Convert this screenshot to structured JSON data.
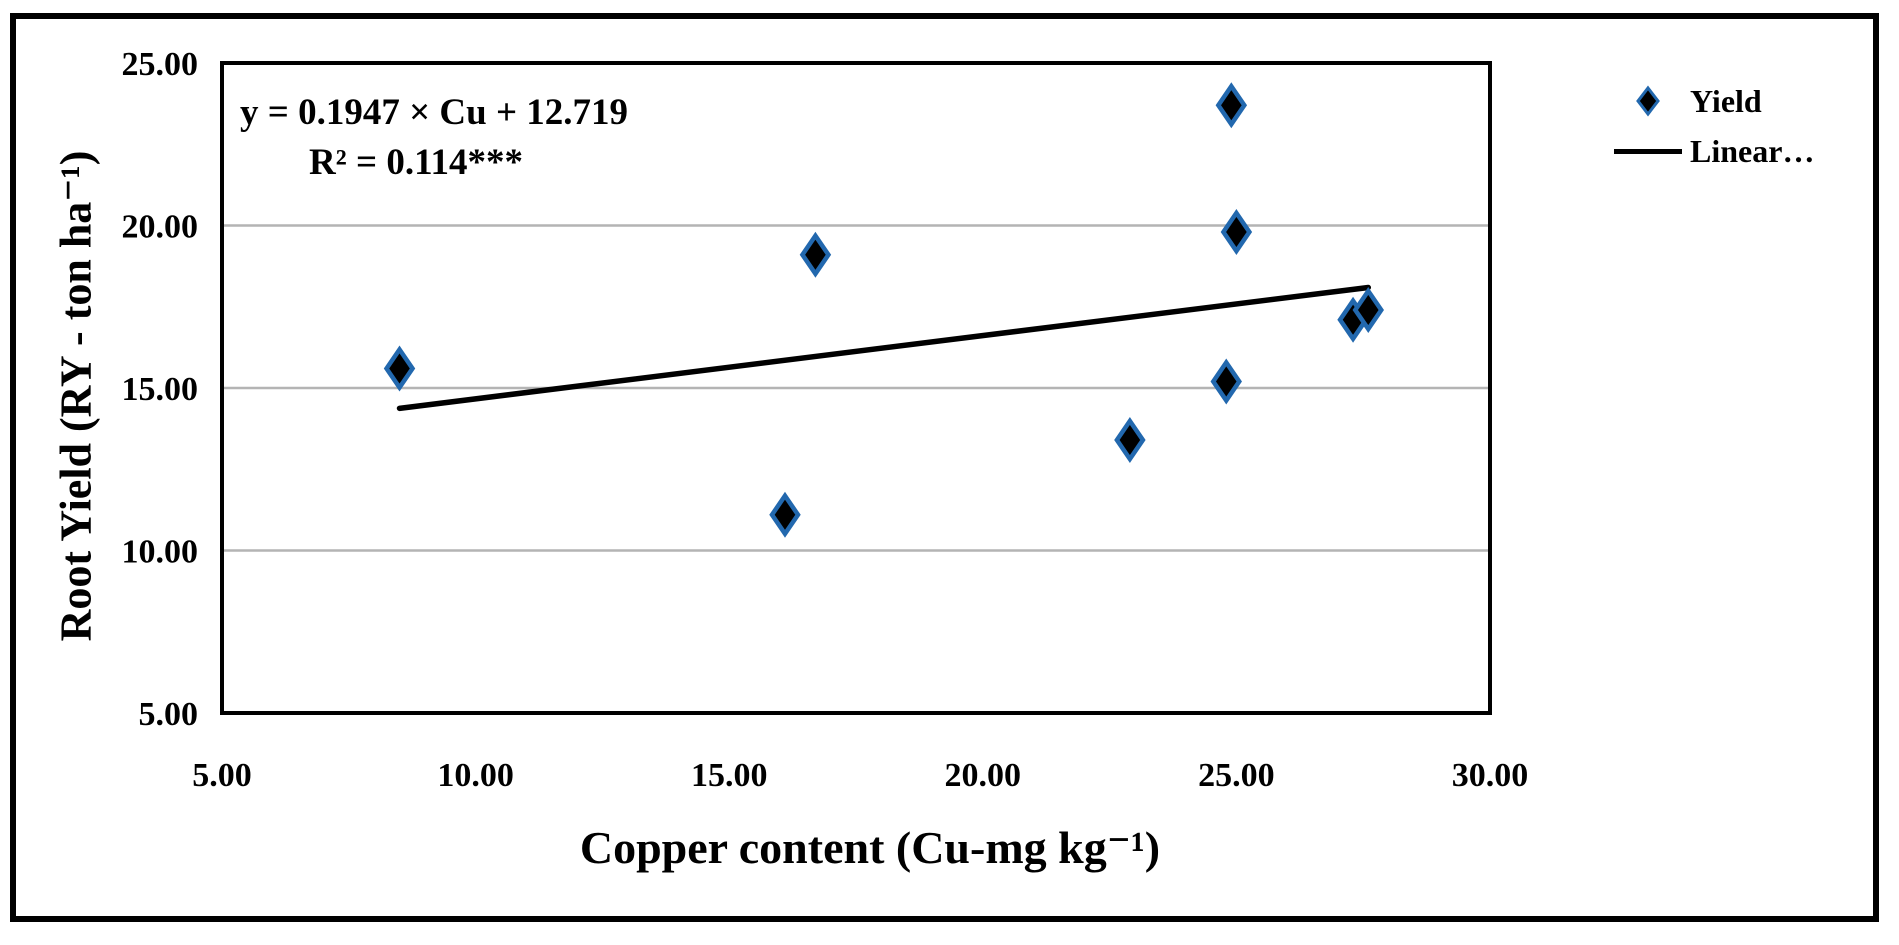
{
  "annotation": {
    "equation": "y = 0.1947 × Cu + 12.719",
    "r_squared": "R² = 0.114***"
  },
  "legend": {
    "position": "right",
    "items": [
      {
        "label": "Yield",
        "marker": "diamond-icon"
      },
      {
        "label": "Linear…",
        "marker": "line-icon"
      }
    ]
  },
  "colors": {
    "marker_fill": "#000000",
    "marker_edge": "#2268ae",
    "trend_line": "#000000",
    "gridline": "#b4b4b4",
    "frame": "#000000",
    "background": "#ffffff"
  },
  "chart_data": {
    "type": "scatter",
    "title": "",
    "xlabel": "Copper content (Cu-mg kg⁻¹)",
    "ylabel": "Root Yield (RY - ton ha⁻¹)",
    "xlim": [
      5,
      30
    ],
    "ylim": [
      5,
      25
    ],
    "x_ticks": [
      "5.00",
      "10.00",
      "15.00",
      "20.00",
      "25.00",
      "30.00"
    ],
    "y_ticks": [
      "5.00",
      "10.00",
      "15.00",
      "20.00",
      "25.00"
    ],
    "grid": "horizontal-major",
    "legend_position": "right",
    "annotations": [
      "y = 0.1947 × Cu + 12.719",
      "R² = 0.114***"
    ],
    "series": [
      {
        "name": "Yield",
        "type": "scatter",
        "marker": "diamond",
        "points": [
          [
            8.5,
            15.6
          ],
          [
            16.1,
            11.1
          ],
          [
            16.7,
            19.1
          ],
          [
            22.9,
            13.4
          ],
          [
            24.8,
            15.2
          ],
          [
            24.9,
            23.7
          ],
          [
            25.0,
            19.8
          ],
          [
            27.3,
            17.1
          ],
          [
            27.6,
            17.4
          ]
        ]
      },
      {
        "name": "Linear…",
        "type": "line",
        "slope": 0.1947,
        "intercept": 12.719,
        "x_range": [
          8.5,
          27.6
        ]
      }
    ]
  }
}
